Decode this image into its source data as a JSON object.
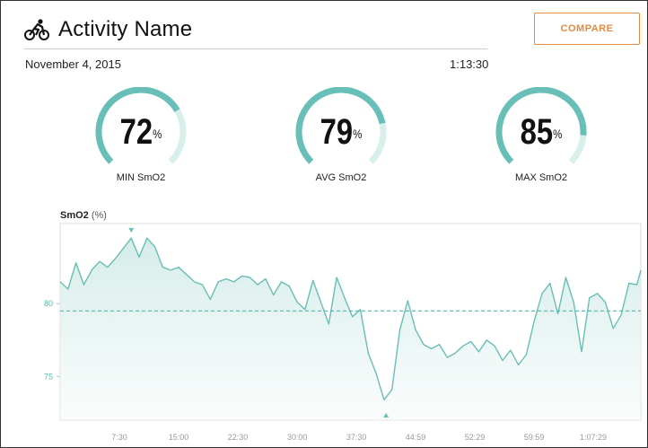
{
  "header": {
    "activity_icon": "cycling-icon",
    "title": "Activity Name",
    "compare_label": "COMPARE"
  },
  "meta": {
    "date": "November 4, 2015",
    "duration": "1:13:30"
  },
  "colors": {
    "accent": "#68bfb7",
    "accent_light": "#d9efec",
    "compare": "#e58b3e",
    "avg_line": "#4fb5ab"
  },
  "gauges": [
    {
      "id": "min",
      "value": 72,
      "unit": "%",
      "label": "MIN SmO2"
    },
    {
      "id": "avg",
      "value": 79,
      "unit": "%",
      "label": "AVG SmO2"
    },
    {
      "id": "max",
      "value": 85,
      "unit": "%",
      "label": "MAX SmO2"
    }
  ],
  "chart_data": {
    "type": "area",
    "title": "SmO2",
    "unit": "(%)",
    "x_labels": [
      "7:30",
      "15:00",
      "22:30",
      "30:00",
      "37:30",
      "44:59",
      "52:29",
      "59:59",
      "1:07:29"
    ],
    "y_ticks": [
      75,
      80
    ],
    "average": 79.5,
    "min_marker": "41:15",
    "max_marker": "9:00",
    "x_minutes": [
      0,
      1,
      2,
      3,
      4,
      5,
      6,
      7,
      8,
      9,
      10,
      11,
      12,
      13,
      14,
      15,
      16,
      17,
      18,
      19,
      20,
      21,
      22,
      23,
      24,
      25,
      26,
      27,
      28,
      29,
      30,
      31,
      32,
      33,
      34,
      35,
      36,
      37,
      38,
      39,
      40,
      41,
      42,
      43,
      44,
      45,
      46,
      47,
      48,
      49,
      50,
      51,
      52,
      53,
      54,
      55,
      56,
      57,
      58,
      59,
      60,
      61,
      62,
      63,
      64,
      65,
      66,
      67,
      68,
      69,
      70,
      71,
      72,
      73,
      73.5
    ],
    "values": [
      81.5,
      81,
      82.8,
      81.3,
      82.3,
      82.9,
      82.5,
      83.1,
      83.8,
      84.5,
      83.2,
      84.5,
      83.9,
      82.5,
      82.3,
      82.5,
      82,
      81.5,
      81.3,
      80.3,
      81.5,
      81.7,
      81.5,
      81.9,
      81.8,
      81.3,
      81.7,
      80.6,
      81.5,
      81.2,
      80.1,
      79.6,
      81.6,
      80.1,
      78.6,
      81.8,
      80.4,
      79.1,
      79.6,
      76.6,
      75.2,
      73.4,
      74.1,
      78.2,
      80.2,
      78.2,
      77.2,
      76.9,
      77.2,
      76.3,
      76.6,
      77.1,
      77.4,
      76.7,
      77.5,
      77.1,
      76.1,
      76.8,
      75.8,
      76.5,
      78.8,
      80.7,
      81.4,
      79.3,
      81.8,
      80.1,
      76.7,
      80.4,
      80.7,
      80.1,
      78.3,
      79.2,
      81.4,
      81.3,
      82.3
    ]
  }
}
